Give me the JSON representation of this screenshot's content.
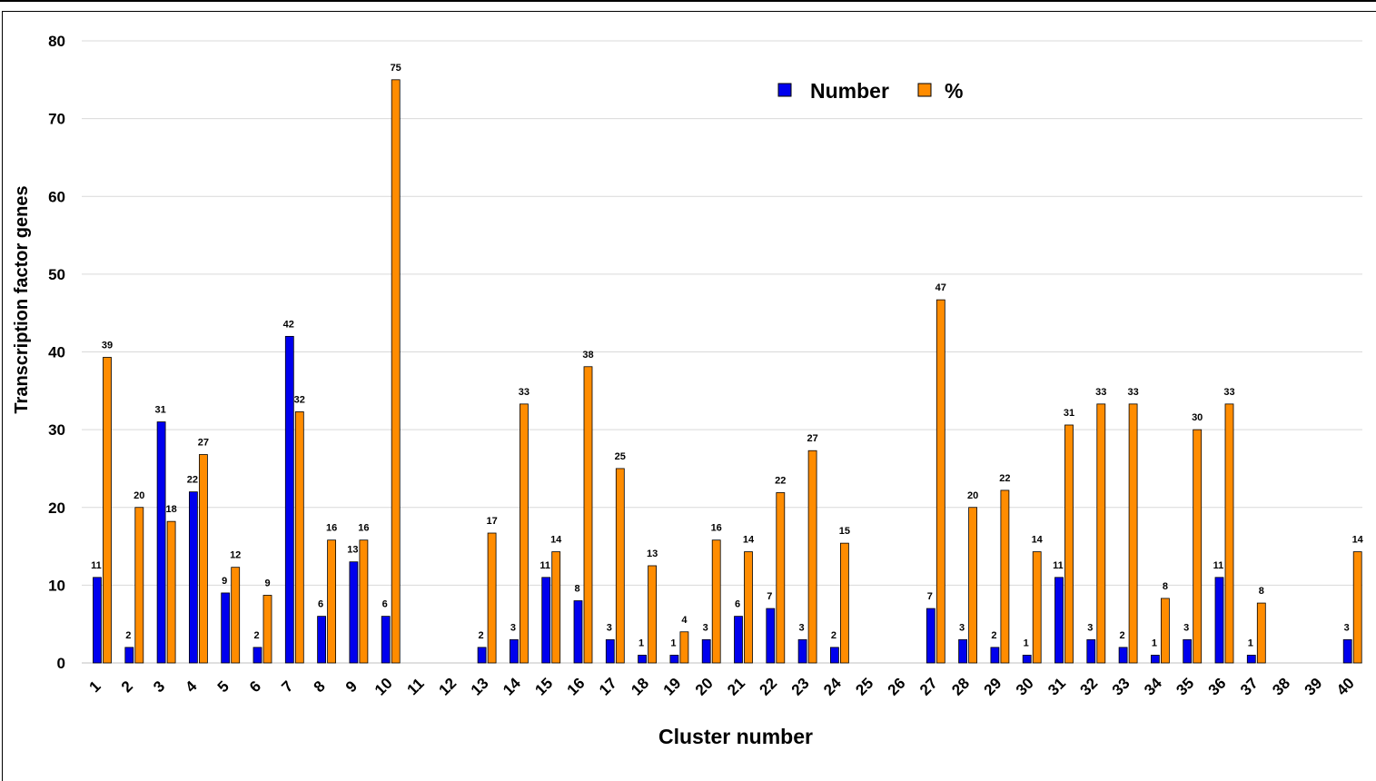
{
  "chart_data": {
    "type": "bar",
    "xlabel": "Cluster number",
    "ylabel": "Transcription  factor genes",
    "ylim": [
      0,
      80
    ],
    "yticks": [
      0,
      10,
      20,
      30,
      40,
      50,
      60,
      70,
      80
    ],
    "grid": true,
    "legend_position": "top-center",
    "categories": [
      "1",
      "2",
      "3",
      "4",
      "5",
      "6",
      "7",
      "8",
      "9",
      "10",
      "11",
      "12",
      "13",
      "14",
      "15",
      "16",
      "17",
      "18",
      "19",
      "20",
      "21",
      "22",
      "23",
      "24",
      "25",
      "26",
      "27",
      "28",
      "29",
      "30",
      "31",
      "32",
      "33",
      "34",
      "35",
      "36",
      "37",
      "38",
      "39",
      "40"
    ],
    "series": [
      {
        "name": "Number",
        "color": "#0000ee",
        "values": [
          11,
          2,
          31,
          22,
          9,
          2,
          42,
          6,
          13,
          6,
          0,
          0,
          2,
          3,
          11,
          8,
          3,
          1,
          1,
          3,
          6,
          7,
          3,
          2,
          0,
          0,
          7,
          3,
          2,
          1,
          11,
          3,
          2,
          1,
          3,
          11,
          1,
          0,
          0,
          3
        ],
        "labels": [
          "11",
          "2",
          "31",
          "22",
          "9",
          "2",
          "42",
          "6",
          "13",
          "6",
          "",
          "",
          "2",
          "3",
          "11",
          "8",
          "3",
          "1",
          "1",
          "3",
          "6",
          "7",
          "3",
          "2",
          "",
          "",
          "7",
          "3",
          "2",
          "1",
          "11",
          "3",
          "2",
          "1",
          "3",
          "11",
          "1",
          "",
          "",
          "3"
        ]
      },
      {
        "name": "%",
        "color": "#ff8c00",
        "values": [
          39.3,
          20,
          18.2,
          26.8,
          12.3,
          8.7,
          32.3,
          15.8,
          15.8,
          75,
          0,
          0,
          16.7,
          33.3,
          14.3,
          38.1,
          25,
          12.5,
          4,
          15.8,
          14.3,
          21.9,
          27.3,
          15.4,
          0,
          0,
          46.7,
          20,
          22.2,
          14.3,
          30.6,
          33.3,
          33.3,
          8.3,
          30,
          33.3,
          7.7,
          0,
          0,
          14.3
        ],
        "labels": [
          "39",
          "20",
          "18",
          "27",
          "12",
          "9",
          "32",
          "16",
          "16",
          "75",
          "",
          "",
          "17",
          "33",
          "14",
          "38",
          "25",
          "13",
          "4",
          "16",
          "14",
          "22",
          "27",
          "15",
          "",
          "",
          "47",
          "20",
          "22",
          "14",
          "31",
          "33",
          "33",
          "8",
          "30",
          "33",
          "8",
          "",
          "",
          "14"
        ]
      }
    ]
  }
}
